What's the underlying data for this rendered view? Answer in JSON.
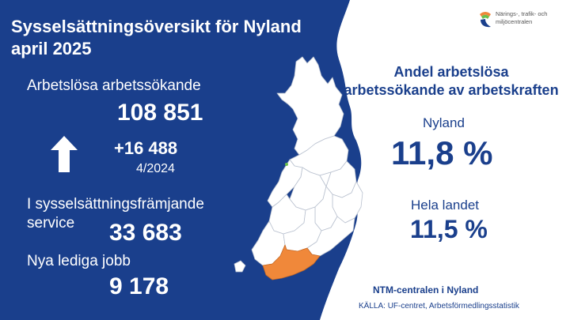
{
  "title": {
    "line1": "Sysselsättningsöversikt för Nyland",
    "line2": "april 2025"
  },
  "unemployed": {
    "label": "Arbetslösa arbetssökande",
    "value": "108 851",
    "change": "+16 488",
    "change_ref": "4/2024"
  },
  "services": {
    "label_line1": "I sysselsättningsfrämjande",
    "label_line2": "service",
    "value": "33 683"
  },
  "vacancies": {
    "label": "Nya lediga jobb",
    "value": "9 178"
  },
  "share": {
    "heading_line1": "Andel arbetslösa",
    "heading_line2": "arbetssökande av arbetskraften",
    "region_label": "Nyland",
    "region_value": "11,8 %",
    "country_label": "Hela landet",
    "country_value": "11,5 %"
  },
  "logo": {
    "line1": "Närings-, trafik- och",
    "line2": "miljöcentralen"
  },
  "footer": {
    "org": "NTM-centralen i Nyland",
    "source": "KÄLLA: UF-centret, Arbetsförmedlingsstatistik"
  },
  "colors": {
    "navy": "#1a3f8c",
    "highlight": "#f0883a",
    "map_fill": "#ffffff"
  }
}
